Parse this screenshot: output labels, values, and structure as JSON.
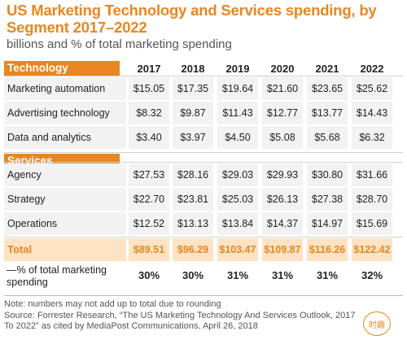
{
  "header": {
    "title": "US Marketing Technology and Services spending, by Segment 2017–2022",
    "subtitle": "billions and % of total marketing spending"
  },
  "chart_data": {
    "type": "table",
    "title": "US Marketing Technology and Services spending, by Segment 2017–2022",
    "subtitle": "billions and % of total marketing spending",
    "columns": [
      "2017",
      "2018",
      "2019",
      "2020",
      "2021",
      "2022"
    ],
    "sections": [
      {
        "name": "Technology",
        "rows": [
          {
            "label": "Marketing automation",
            "values": [
              "$15.05",
              "$17.35",
              "$19.64",
              "$21.60",
              "$23.65",
              "$25.62"
            ]
          },
          {
            "label": "Advertising technology",
            "values": [
              "$8.32",
              "$9.87",
              "$11.43",
              "$12.77",
              "$13.77",
              "$14.43"
            ]
          },
          {
            "label": "Data and analytics",
            "values": [
              "$3.40",
              "$3.97",
              "$4.50",
              "$5.08",
              "$5.68",
              "$6.32"
            ]
          }
        ]
      },
      {
        "name": "Services",
        "rows": [
          {
            "label": "Agency",
            "values": [
              "$27.53",
              "$28.16",
              "$29.03",
              "$29.93",
              "$30.80",
              "$31.66"
            ]
          },
          {
            "label": "Strategy",
            "values": [
              "$22.70",
              "$23.81",
              "$25.03",
              "$26.13",
              "$27.38",
              "$28.70"
            ]
          },
          {
            "label": "Operations",
            "values": [
              "$12.52",
              "$13.13",
              "$13.84",
              "$14.37",
              "$14.97",
              "$15.69"
            ]
          }
        ]
      }
    ],
    "total": {
      "label": "Total",
      "values": [
        "$89.51",
        "$96.29",
        "$103.47",
        "$109.87",
        "$116.26",
        "$122.42"
      ]
    },
    "percent": {
      "label": "—% of total marketing spending",
      "values": [
        "30%",
        "30%",
        "31%",
        "31%",
        "31%",
        "32%"
      ]
    }
  },
  "footer": {
    "note": "Note: numbers may not add up to total due to rounding",
    "source": "Source: Forrester Research, “The US Marketing Technology And Services Outlook, 2017 To 2022” as cited by MediaPost Communications, April 26, 2018",
    "logo_icon": "watermark-logo-icon"
  },
  "colors": {
    "accent": "#e8861f",
    "total_bg": "#fde3c4",
    "row_bg": "#f2f2f2"
  }
}
